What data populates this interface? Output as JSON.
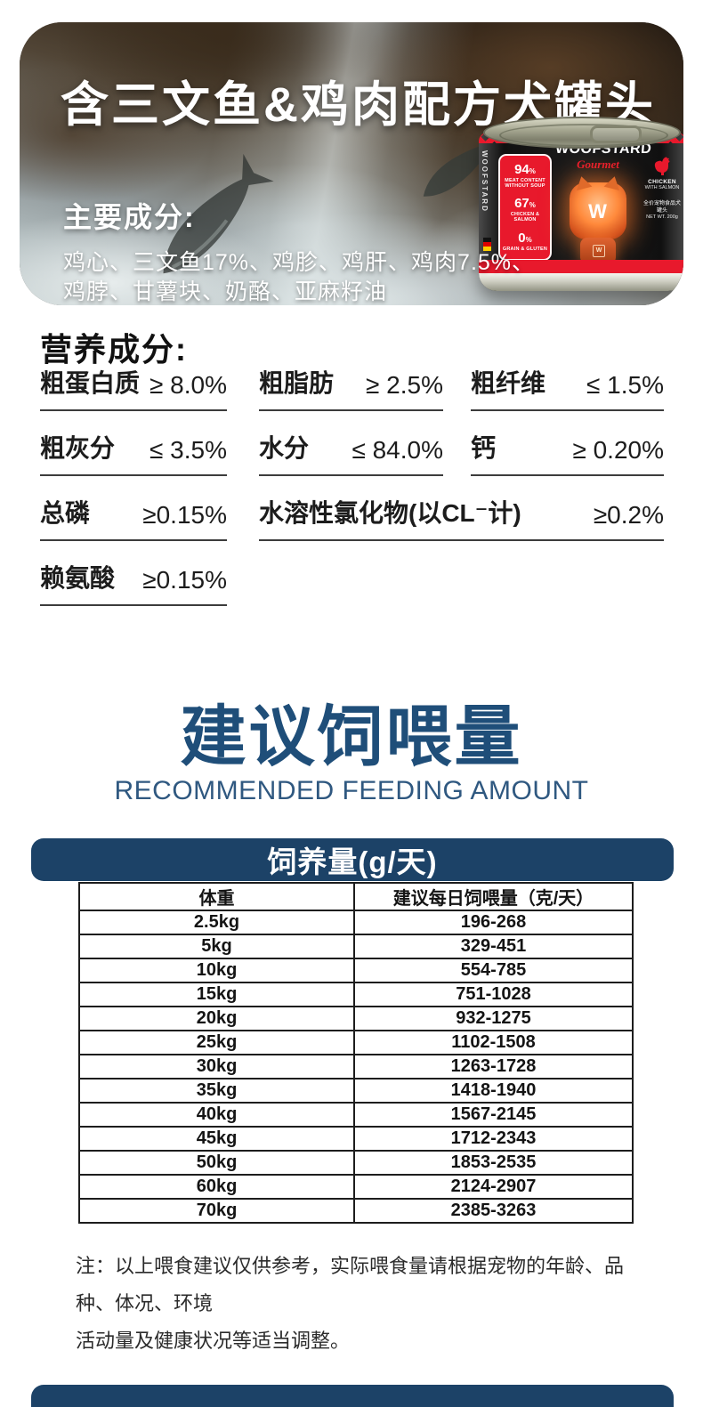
{
  "hero": {
    "title": "含三文鱼&鸡肉配方犬罐头",
    "ingredients_heading": "主要成分:",
    "ingredients_line1": "鸡心、三文鱼17%、鸡胗、鸡肝、鸡肉7.5%、",
    "ingredients_line2": "鸡脖、甘薯块、奶酪、亚麻籽油",
    "can": {
      "brand": "WOOFSTARD",
      "brand_sub": "Gourmet",
      "vertical_brand": "WOOFSTARD",
      "mascot_letter": "W",
      "mascot_chest": "W",
      "stats": [
        {
          "value": "94",
          "unit": "%",
          "label": "MEAT CONTENT WITHOUT SOUP"
        },
        {
          "value": "67",
          "unit": "%",
          "label": "CHICKEN & SALMON"
        },
        {
          "value": "0",
          "unit": "%",
          "label": "GRAIN & GLUTEN"
        }
      ],
      "flavor": "CHICKEN",
      "flavor_sub": "WITH SALMON",
      "product_cn": "全价宠物食品犬罐头",
      "net_wt": "NET WT. 200g"
    }
  },
  "nutrition": {
    "heading": "营养成分:",
    "items": [
      {
        "label": "粗蛋白质",
        "value": "≥ 8.0%"
      },
      {
        "label": "粗脂肪",
        "value": "≥ 2.5%"
      },
      {
        "label": "粗纤维",
        "value": "≤ 1.5%"
      },
      {
        "label": "粗灰分",
        "value": "≤ 3.5%"
      },
      {
        "label": "水分",
        "value": "≤ 84.0%"
      },
      {
        "label": "钙",
        "value": "≥ 0.20%"
      },
      {
        "label": "总磷",
        "value": "≥0.15%"
      },
      {
        "label": "水溶性氯化物(以CL⁻计)",
        "value": "≥0.2%"
      },
      {
        "label": "赖氨酸",
        "value": "≥0.15%"
      }
    ]
  },
  "feeding": {
    "title": "建议饲喂量",
    "subtitle": "RECOMMENDED FEEDING AMOUNT",
    "table_header_bar": "饲养量(g/天)",
    "columns": [
      "体重",
      "建议每日饲喂量（克/天）"
    ],
    "rows": [
      [
        "2.5kg",
        "196-268"
      ],
      [
        "5kg",
        "329-451"
      ],
      [
        "10kg",
        "554-785"
      ],
      [
        "15kg",
        "751-1028"
      ],
      [
        "20kg",
        "932-1275"
      ],
      [
        "25kg",
        "1102-1508"
      ],
      [
        "30kg",
        "1263-1728"
      ],
      [
        "35kg",
        "1418-1940"
      ],
      [
        "40kg",
        "1567-2145"
      ],
      [
        "45kg",
        "1712-2343"
      ],
      [
        "50kg",
        "1853-2535"
      ],
      [
        "60kg",
        "2124-2907"
      ],
      [
        "70kg",
        "2385-3263"
      ]
    ],
    "note_line1": "注：以上喂食建议仅供参考，实际喂食量请根据宠物的年龄、品种、体况、环境",
    "note_line2": "活动量及健康状况等适当调整。"
  },
  "colors": {
    "accent_blue": "#1c4267",
    "title_blue": "#1f4e79",
    "brand_red": "#e8192c"
  }
}
